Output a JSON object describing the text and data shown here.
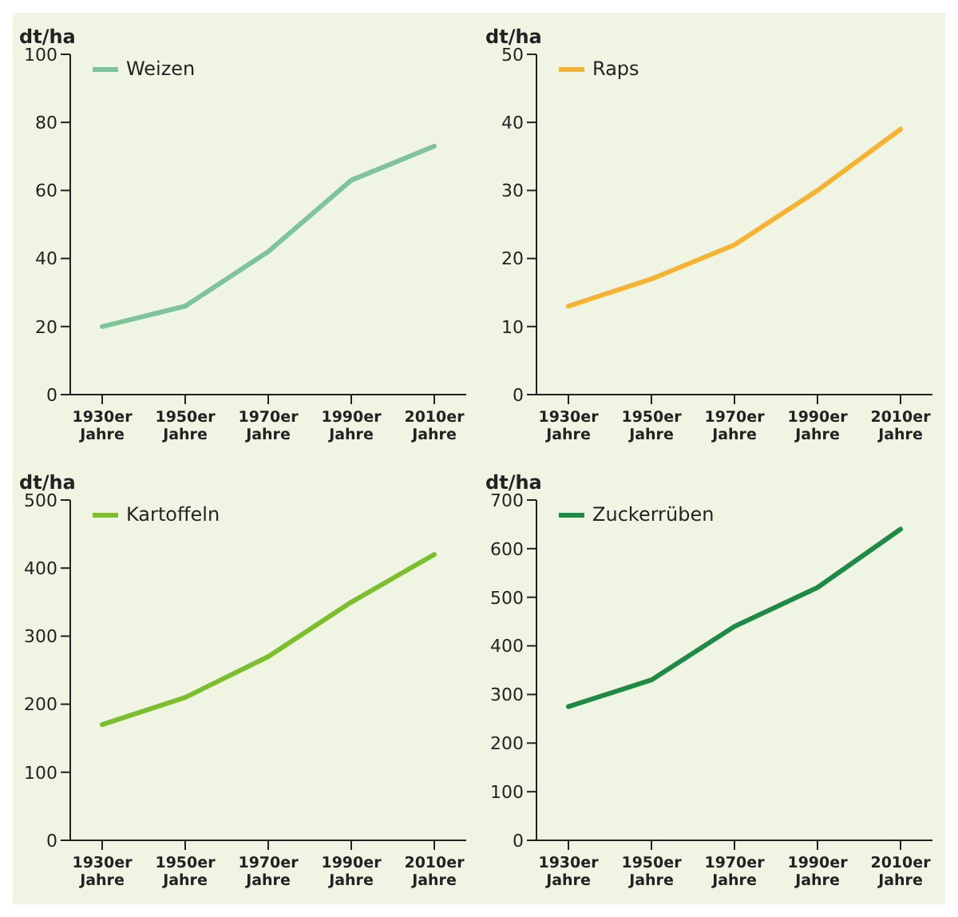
{
  "chart_data": [
    {
      "type": "line",
      "ylabel": "dt/ha",
      "categories": [
        "1930er Jahre",
        "1950er Jahre",
        "1970er Jahre",
        "1990er Jahre",
        "2010er Jahre"
      ],
      "series": [
        {
          "name": "Weizen",
          "color": "#7fc39a",
          "values": [
            20,
            26,
            42,
            63,
            73
          ]
        }
      ],
      "ylim": [
        0,
        100
      ],
      "yticks": [
        0,
        20,
        40,
        60,
        80,
        100
      ],
      "legend": "top left",
      "marker": "none",
      "grid": false
    },
    {
      "type": "line",
      "ylabel": "dt/ha",
      "categories": [
        "1930er Jahre",
        "1950er Jahre",
        "1970er Jahre",
        "1990er Jahre",
        "2010er Jahre"
      ],
      "series": [
        {
          "name": "Raps",
          "color": "#f6b233",
          "values": [
            13,
            17,
            22,
            30,
            39
          ]
        }
      ],
      "ylim": [
        0,
        50
      ],
      "yticks": [
        0,
        10,
        20,
        30,
        40,
        50
      ],
      "legend": "top left",
      "marker": "none",
      "grid": false
    },
    {
      "type": "line",
      "ylabel": "dt/ha",
      "categories": [
        "1930er Jahre",
        "1950er Jahre",
        "1970er Jahre",
        "1990er Jahre",
        "2010er Jahre"
      ],
      "series": [
        {
          "name": "Kartoffeln",
          "color": "#7cbf2e",
          "values": [
            170,
            210,
            270,
            350,
            420
          ]
        }
      ],
      "ylim": [
        0,
        500
      ],
      "yticks": [
        0,
        100,
        200,
        300,
        400,
        500
      ],
      "legend": "top left",
      "marker": "none",
      "grid": false
    },
    {
      "type": "line",
      "ylabel": "dt/ha",
      "categories": [
        "1930er Jahre",
        "1950er Jahre",
        "1970er Jahre",
        "1990er Jahre",
        "2010er Jahre"
      ],
      "series": [
        {
          "name": "Zuckerrüben",
          "color": "#1f8a45",
          "values": [
            275,
            330,
            440,
            520,
            640
          ]
        }
      ],
      "ylim": [
        0,
        700
      ],
      "yticks": [
        0,
        100,
        200,
        300,
        400,
        500,
        600,
        700
      ],
      "legend": "top left",
      "marker": "none",
      "grid": false
    }
  ]
}
